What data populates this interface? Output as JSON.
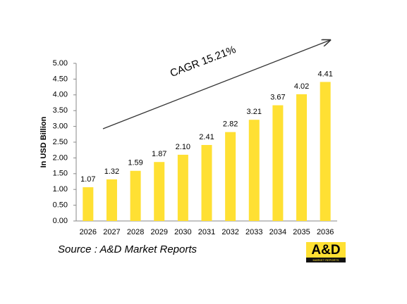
{
  "chart_data": {
    "type": "bar",
    "y_label": "In USD Billion",
    "annotation": "CAGR 15.21%",
    "source": "Source : A&D Market Reports",
    "logo": {
      "title": "A&D",
      "subtitle": "MARKET REPORTS"
    },
    "categories": [
      "2026",
      "2027",
      "2028",
      "2029",
      "2030",
      "2031",
      "2032",
      "2033",
      "2034",
      "2035",
      "2036"
    ],
    "values": [
      1.07,
      1.32,
      1.59,
      1.87,
      2.1,
      2.41,
      2.82,
      3.21,
      3.67,
      4.02,
      4.41
    ],
    "value_labels": [
      "1.07",
      "1.32",
      "1.59",
      "1.87",
      "2.10",
      "2.41",
      "2.82",
      "3.21",
      "3.67",
      "4.02",
      "4.41"
    ],
    "color": "#FFE033",
    "ylim": [
      0,
      5
    ],
    "yticks": [
      {
        "value": 0,
        "label": "0.00"
      },
      {
        "value": 0.5,
        "label": "0.50"
      },
      {
        "value": 1,
        "label": "1.00"
      },
      {
        "value": 1.5,
        "label": "1.50"
      },
      {
        "value": 2,
        "label": "2.00"
      },
      {
        "value": 2.5,
        "label": "2.50"
      },
      {
        "value": 3,
        "label": "3.00"
      },
      {
        "value": 3.5,
        "label": "3.50"
      },
      {
        "value": 4,
        "label": "4.00"
      },
      {
        "value": 4.5,
        "label": "4.50"
      },
      {
        "value": 5,
        "label": "5.00"
      }
    ],
    "grid": false
  }
}
